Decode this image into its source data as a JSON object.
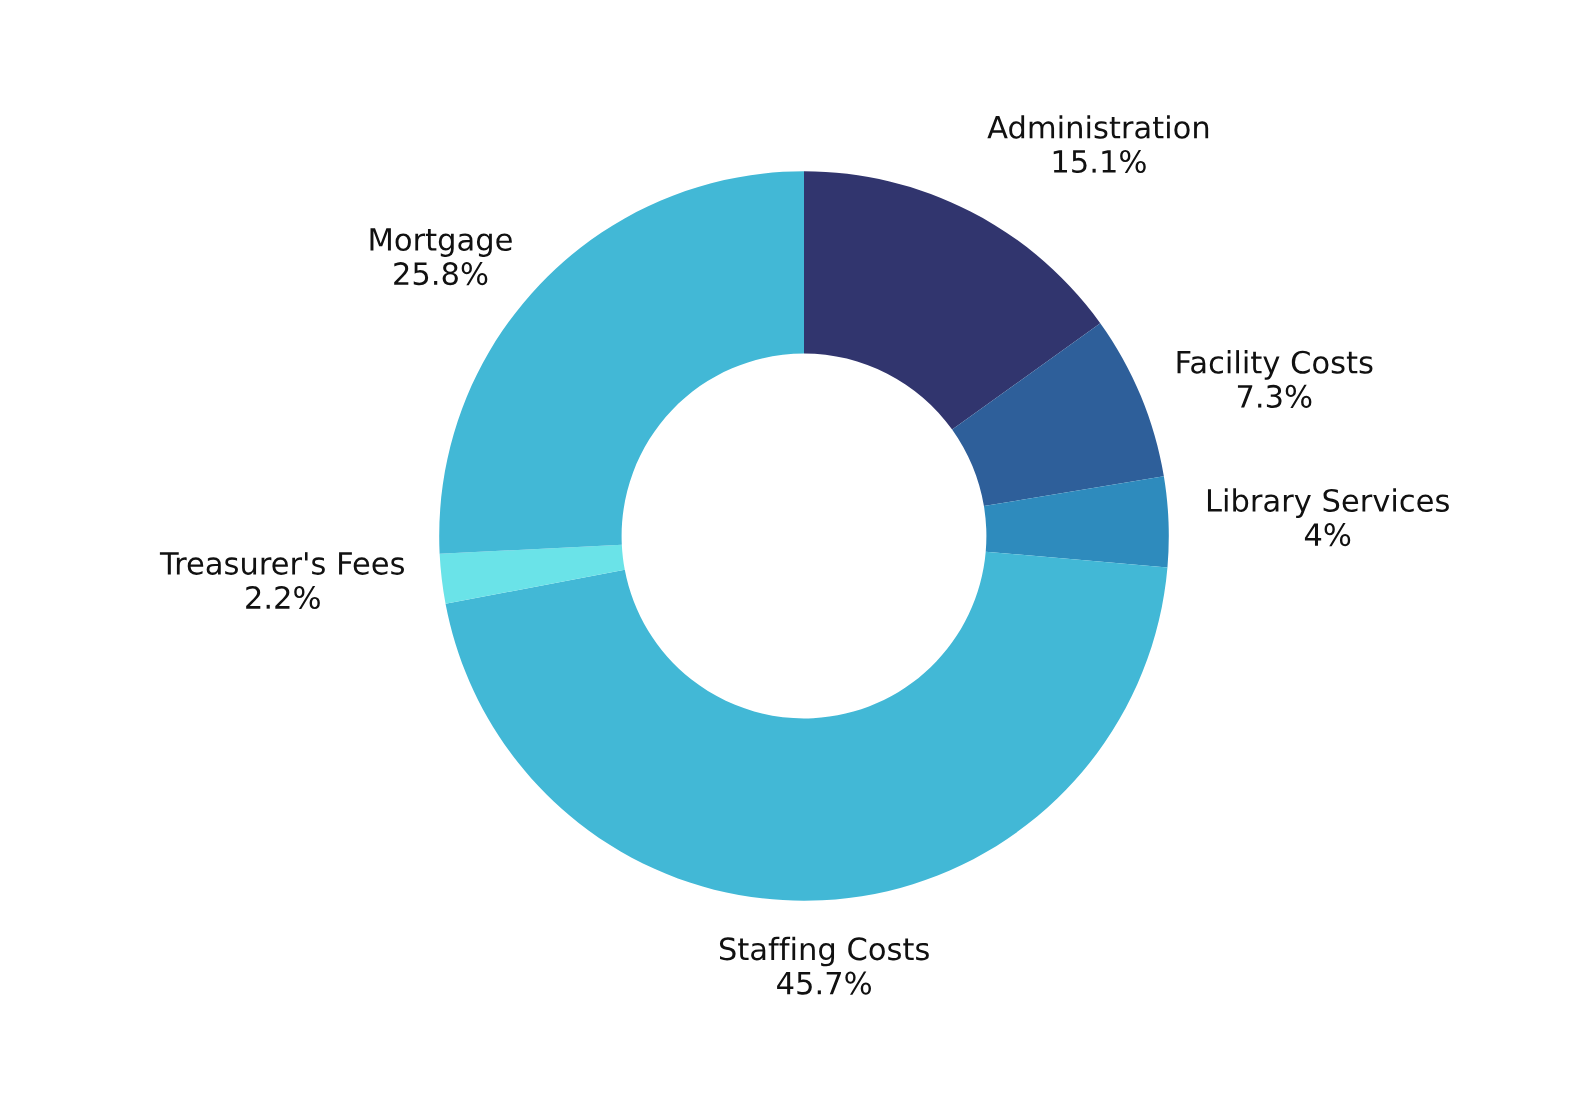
{
  "chart_data": {
    "type": "donut",
    "categories": [
      "Administration",
      "Facility Costs",
      "Library Services",
      "Staffing Costs",
      "Treasurer's Fees",
      "Mortgage"
    ],
    "values": [
      15.1,
      7.3,
      4,
      45.7,
      2.2,
      25.8
    ],
    "value_labels": [
      "15.1%",
      "7.3%",
      "4%",
      "45.7%",
      "2.2%",
      "25.8%"
    ],
    "colors": [
      "#31356e",
      "#2e5f9a",
      "#2e8bbd",
      "#42b8d6",
      "#6ae3e8",
      "#42b8d6"
    ],
    "legend": false
  }
}
